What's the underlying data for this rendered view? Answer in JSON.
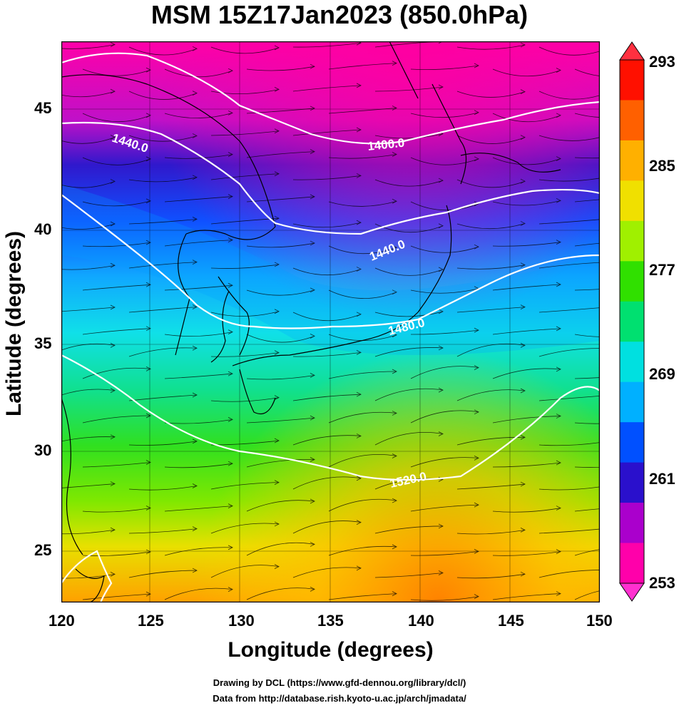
{
  "title": "MSM 15Z17Jan2023 (850.0hPa)",
  "axes": {
    "xlabel": "Longitude (degrees)",
    "ylabel": "Latitude  (degrees)",
    "x_ticks": [
      "120",
      "125",
      "130",
      "135",
      "140",
      "145",
      "150"
    ],
    "y_ticks": [
      "45",
      "40",
      "35",
      "30",
      "25"
    ]
  },
  "colorbar": {
    "ticks": [
      "293",
      "285",
      "277",
      "269",
      "261",
      "253"
    ],
    "colors": [
      "#ff00aa",
      "#aa00cc",
      "#2a10cc",
      "#0050ff",
      "#00b0ff",
      "#00e0e0",
      "#00e070",
      "#30e000",
      "#a0f000",
      "#f0e000",
      "#ffb000",
      "#ff6000",
      "#ff1000"
    ]
  },
  "contours": [
    {
      "label": "1400.0"
    },
    {
      "label": "1440.0"
    },
    {
      "label": "1440.0"
    },
    {
      "label": "1480.0"
    },
    {
      "label": "1520.0"
    }
  ],
  "credits": {
    "line1": "Drawing by DCL (https://www.gfd-dennou.org/library/dcl/)",
    "line2": "Data from http://database.rish.kyoto-u.ac.jp/arch/jmadata/"
  }
}
